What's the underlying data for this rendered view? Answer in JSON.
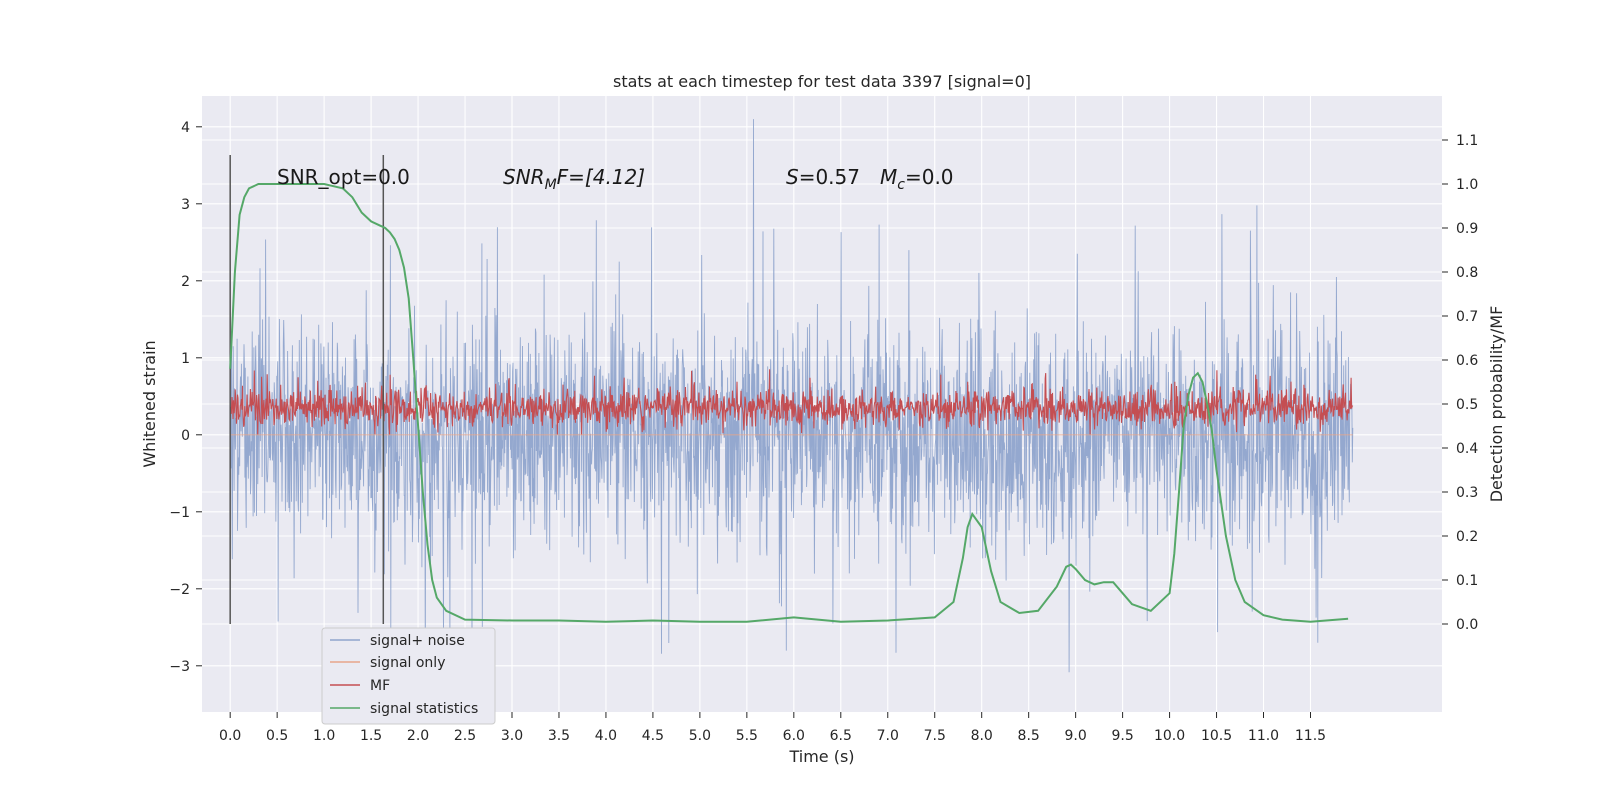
{
  "chart_data": {
    "type": "line",
    "title": "stats at each timestep for test data 3397 [signal=0]",
    "xlabel": "Time (s)",
    "ylabel": "Whitened strain",
    "y2label": "Detection probability/MF",
    "xlim": [
      -0.3,
      12.9
    ],
    "ylim": [
      -3.6,
      4.4
    ],
    "y2lim": [
      -0.2,
      1.2
    ],
    "xticks": [
      "0.0",
      "0.5",
      "1.0",
      "1.5",
      "2.0",
      "2.5",
      "3.0",
      "3.5",
      "4.0",
      "4.5",
      "5.0",
      "5.5",
      "6.0",
      "6.5",
      "7.0",
      "7.5",
      "8.0",
      "8.5",
      "9.0",
      "9.5",
      "10.0",
      "10.5",
      "11.0",
      "11.5"
    ],
    "yticks": [
      "4",
      "3",
      "2",
      "1",
      "0",
      "−1",
      "−2",
      "−3"
    ],
    "y2ticks": [
      "1.1",
      "1.0",
      "0.9",
      "0.8",
      "0.7",
      "0.6",
      "0.5",
      "0.4",
      "0.3",
      "0.2",
      "0.1",
      "0.0"
    ],
    "grid": true,
    "legend_position": "lower-left",
    "annotations": {
      "snr_opt": "SNR_opt=0.0",
      "snr_mf_sym": "SNR",
      "snr_mf_sub": "M",
      "snr_mf_rest": "F=[4.12]",
      "s_sym": "S",
      "s_rest": "=0.57",
      "mc_sym": "M",
      "mc_sub": "c",
      "mc_rest": "=0.0"
    },
    "vertical_markers_x": [
      0.0,
      1.63
    ],
    "series": [
      {
        "name": "signal+ noise",
        "color": "#8fa4cc",
        "axis": "left",
        "envelope_x": [
          0.0,
          11.95
        ],
        "envelope": {
          "typical_low": -1.5,
          "typical_high": 1.5,
          "max": 4.1,
          "min": -3.2
        }
      },
      {
        "name": "signal only",
        "color": "#e8a589",
        "axis": "left",
        "x": [
          0.0,
          11.95
        ],
        "values": [
          0.0,
          0.0
        ]
      },
      {
        "name": "MF",
        "color": "#c44e52",
        "axis": "right",
        "envelope_x": [
          0.0,
          11.95
        ],
        "envelope": {
          "typical_low": 0.43,
          "typical_high": 0.55,
          "max": 0.61,
          "min": 0.43
        }
      },
      {
        "name": "signal statistics",
        "color": "#55a868",
        "axis": "right",
        "x": [
          0.0,
          0.05,
          0.1,
          0.15,
          0.2,
          0.3,
          0.4,
          0.6,
          0.8,
          1.0,
          1.1,
          1.2,
          1.3,
          1.4,
          1.5,
          1.6,
          1.65,
          1.7,
          1.75,
          1.8,
          1.85,
          1.9,
          1.95,
          2.0,
          2.05,
          2.1,
          2.15,
          2.2,
          2.3,
          2.5,
          3.0,
          3.5,
          4.0,
          4.5,
          5.0,
          5.5,
          6.0,
          6.5,
          7.0,
          7.5,
          7.7,
          7.8,
          7.85,
          7.9,
          8.0,
          8.1,
          8.2,
          8.4,
          8.6,
          8.8,
          8.9,
          8.95,
          9.0,
          9.1,
          9.2,
          9.3,
          9.4,
          9.5,
          9.6,
          9.8,
          10.0,
          10.05,
          10.1,
          10.15,
          10.2,
          10.25,
          10.3,
          10.35,
          10.4,
          10.45,
          10.5,
          10.6,
          10.7,
          10.8,
          11.0,
          11.2,
          11.5,
          11.9
        ],
        "values": [
          0.58,
          0.8,
          0.93,
          0.97,
          0.99,
          1.0,
          1.0,
          1.0,
          1.0,
          1.0,
          0.995,
          0.99,
          0.97,
          0.935,
          0.915,
          0.905,
          0.9,
          0.89,
          0.875,
          0.85,
          0.81,
          0.74,
          0.6,
          0.45,
          0.3,
          0.18,
          0.1,
          0.06,
          0.03,
          0.01,
          0.008,
          0.008,
          0.005,
          0.008,
          0.005,
          0.005,
          0.015,
          0.005,
          0.008,
          0.015,
          0.05,
          0.15,
          0.22,
          0.25,
          0.22,
          0.12,
          0.05,
          0.025,
          0.03,
          0.085,
          0.13,
          0.135,
          0.125,
          0.1,
          0.09,
          0.095,
          0.095,
          0.07,
          0.045,
          0.03,
          0.07,
          0.16,
          0.3,
          0.45,
          0.52,
          0.56,
          0.57,
          0.55,
          0.5,
          0.44,
          0.35,
          0.2,
          0.1,
          0.05,
          0.02,
          0.01,
          0.005,
          0.012
        ]
      }
    ]
  }
}
